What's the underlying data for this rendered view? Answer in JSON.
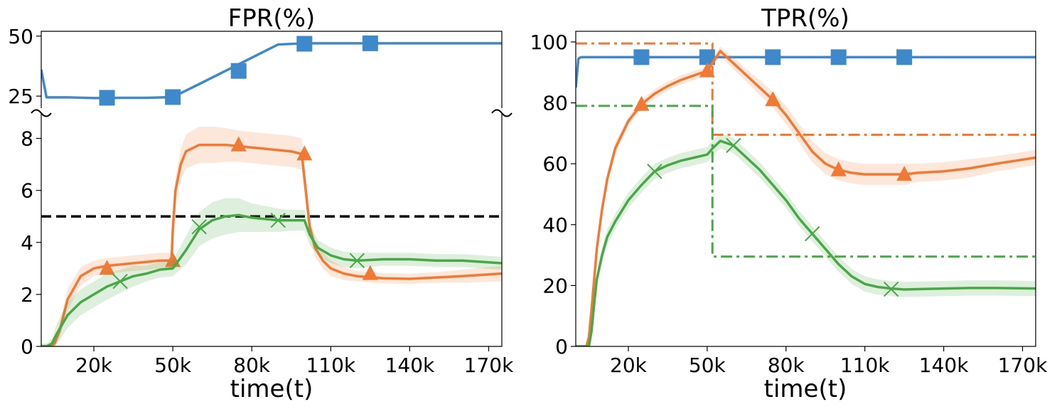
{
  "chart_data": [
    {
      "type": "line",
      "title": "FPR(%)",
      "xlabel": "time(t)",
      "ylabel": "",
      "x_ticks": [
        "20k",
        "50k",
        "80k",
        "110k",
        "140k",
        "170k"
      ],
      "xlim_k": [
        0,
        175
      ],
      "broken_y_axis": true,
      "upper_ylim": [
        20,
        52
      ],
      "upper_yticks": [
        25,
        50
      ],
      "lower_ylim": [
        0,
        9
      ],
      "lower_yticks": [
        0,
        2,
        4,
        6,
        8
      ],
      "threshold_line": {
        "y": 5,
        "style": "dashed",
        "color": "#000000"
      },
      "grid": false,
      "series": [
        {
          "color": "#3f88c9",
          "marker": "square",
          "x": [
            0,
            2,
            10,
            20,
            30,
            40,
            50,
            60,
            70,
            80,
            90,
            100,
            110,
            125,
            140,
            160,
            175
          ],
          "y": [
            36,
            24.5,
            24.5,
            24.2,
            24.3,
            24.3,
            24.6,
            30,
            35.5,
            41,
            46.5,
            47,
            47,
            47,
            47,
            47,
            47
          ],
          "markers_x": [
            25,
            50,
            75,
            100,
            125
          ],
          "markers_y": [
            24.3,
            24.6,
            35.5,
            46.8,
            47
          ]
        },
        {
          "color": "#f07933",
          "marker": "triangle",
          "x": [
            0,
            3,
            5,
            7,
            10,
            15,
            20,
            25,
            30,
            35,
            40,
            45,
            49.5,
            50,
            51,
            53,
            55,
            60,
            65,
            70,
            75,
            80,
            85,
            90,
            95,
            99,
            100.5,
            102,
            104,
            107,
            110,
            115,
            120,
            130,
            140,
            150,
            160,
            175
          ],
          "y": [
            0,
            0,
            0.1,
            0.6,
            1.8,
            2.7,
            3.0,
            3.1,
            3.15,
            3.2,
            3.25,
            3.3,
            3.3,
            4.5,
            6.0,
            7.0,
            7.5,
            7.75,
            7.75,
            7.75,
            7.7,
            7.65,
            7.6,
            7.55,
            7.5,
            7.4,
            6.0,
            4.6,
            3.8,
            3.3,
            3.0,
            2.8,
            2.7,
            2.62,
            2.6,
            2.65,
            2.7,
            2.8
          ],
          "band": [
            0.1,
            0.1,
            0.15,
            0.3,
            0.4,
            0.35,
            0.3,
            0.3,
            0.3,
            0.3,
            0.3,
            0.3,
            0.3,
            0.4,
            0.5,
            0.6,
            0.65,
            0.7,
            0.7,
            0.65,
            0.6,
            0.6,
            0.6,
            0.6,
            0.6,
            0.6,
            0.5,
            0.4,
            0.35,
            0.3,
            0.3,
            0.25,
            0.2,
            0.2,
            0.2,
            0.2,
            0.25,
            0.3
          ],
          "markers_x": [
            25,
            50,
            75,
            100,
            125
          ],
          "markers_y": [
            3.0,
            3.3,
            7.75,
            7.4,
            2.8
          ]
        },
        {
          "color": "#49a846",
          "marker": "x",
          "x": [
            0,
            2,
            4,
            6,
            10,
            15,
            20,
            25,
            30,
            35,
            40,
            45,
            50,
            55,
            60,
            65,
            70,
            75,
            80,
            85,
            90,
            95,
            100,
            102,
            105,
            110,
            115,
            120,
            130,
            140,
            150,
            160,
            175
          ],
          "y": [
            0,
            0,
            0.1,
            0.5,
            1.2,
            1.7,
            2.0,
            2.3,
            2.5,
            2.7,
            2.8,
            2.95,
            3.0,
            3.7,
            4.5,
            4.85,
            5.0,
            5.05,
            4.95,
            4.9,
            4.85,
            4.85,
            4.85,
            4.3,
            3.8,
            3.5,
            3.35,
            3.3,
            3.35,
            3.35,
            3.3,
            3.3,
            3.2
          ],
          "band": [
            0.1,
            0.1,
            0.2,
            0.4,
            0.5,
            0.5,
            0.5,
            0.5,
            0.45,
            0.4,
            0.3,
            0.3,
            0.3,
            0.55,
            0.65,
            0.7,
            0.7,
            0.65,
            0.55,
            0.5,
            0.45,
            0.4,
            0.4,
            0.4,
            0.3,
            0.3,
            0.3,
            0.3,
            0.25,
            0.25,
            0.25,
            0.25,
            0.25
          ],
          "markers_x": [
            30,
            60,
            90,
            120
          ],
          "markers_y": [
            2.5,
            4.6,
            4.85,
            3.3
          ]
        }
      ]
    },
    {
      "type": "line",
      "title": "TPR(%)",
      "xlabel": "time(t)",
      "ylabel": "",
      "x_ticks": [
        "20k",
        "50k",
        "80k",
        "110k",
        "140k",
        "170k"
      ],
      "xlim_k": [
        0,
        175
      ],
      "ylim": [
        0,
        100
      ],
      "yticks": [
        0,
        20,
        40,
        60,
        80,
        100
      ],
      "grid": false,
      "reference_lines": [
        {
          "color": "#f07933",
          "style": "dashdot",
          "points": [
            [
              0,
              99.5
            ],
            [
              52,
              99.5
            ],
            [
              52,
              69.5
            ],
            [
              175,
              69.5
            ]
          ]
        },
        {
          "color": "#49a846",
          "style": "dashdot",
          "points": [
            [
              0,
              79
            ],
            [
              52,
              79
            ],
            [
              52,
              29.5
            ],
            [
              175,
              29.5
            ]
          ]
        }
      ],
      "series": [
        {
          "color": "#3f88c9",
          "marker": "square",
          "x": [
            0,
            1,
            2,
            10,
            20,
            30,
            40,
            50,
            60,
            70,
            80,
            90,
            100,
            110,
            125,
            140,
            160,
            175
          ],
          "y": [
            85,
            94.5,
            95,
            95,
            95,
            95,
            95,
            95,
            95,
            95,
            95,
            95,
            95,
            95,
            95,
            95,
            95,
            95
          ],
          "markers_x": [
            25,
            50,
            75,
            100,
            125
          ],
          "markers_y": [
            95,
            95,
            95,
            95,
            95
          ]
        },
        {
          "color": "#f07933",
          "marker": "triangle",
          "x": [
            0,
            4,
            5,
            6,
            8,
            10,
            12,
            15,
            20,
            25,
            30,
            35,
            40,
            45,
            50,
            52,
            55,
            60,
            65,
            70,
            75,
            80,
            85,
            90,
            95,
            100,
            105,
            110,
            115,
            120,
            125,
            130,
            140,
            150,
            160,
            175
          ],
          "y": [
            0,
            0,
            3,
            12,
            32,
            45,
            55,
            65,
            74,
            79.5,
            83,
            85.5,
            87.5,
            89,
            90.5,
            93,
            97,
            93,
            89,
            85,
            81,
            76,
            70,
            64,
            60,
            58,
            57,
            56.5,
            56.5,
            56.5,
            56.5,
            57,
            57.5,
            58.5,
            60,
            62
          ],
          "band": [
            0,
            0.5,
            1,
            1.5,
            2,
            2,
            2,
            2,
            1.5,
            1.5,
            1.5,
            1.5,
            1.5,
            1.5,
            1.5,
            1.5,
            1.5,
            2,
            2,
            2.5,
            2.5,
            3,
            3,
            3.5,
            3.5,
            3.5,
            3.5,
            3.5,
            3.5,
            3.5,
            3.5,
            3,
            3,
            3,
            2.5,
            2.5
          ],
          "markers_x": [
            25,
            50,
            75,
            100,
            125
          ],
          "markers_y": [
            79.5,
            90.5,
            81,
            58,
            56.5
          ]
        },
        {
          "color": "#49a846",
          "marker": "x",
          "x": [
            0,
            5,
            6,
            7,
            8,
            10,
            12,
            15,
            20,
            25,
            30,
            35,
            40,
            45,
            50,
            52,
            55,
            60,
            65,
            70,
            75,
            80,
            85,
            90,
            95,
            100,
            105,
            110,
            115,
            120,
            125,
            130,
            140,
            150,
            160,
            175
          ],
          "y": [
            0,
            0,
            5,
            14,
            22,
            30,
            36,
            41,
            48,
            53,
            57.5,
            59.5,
            61,
            62,
            63,
            65,
            67.5,
            66,
            62,
            58,
            53,
            48,
            42,
            37,
            32,
            27,
            23,
            20.5,
            19.5,
            19,
            18.7,
            18.8,
            19,
            19.2,
            19.2,
            19
          ],
          "band": [
            0,
            0.5,
            1,
            1.5,
            2,
            2.5,
            2.5,
            2.5,
            2.5,
            2.5,
            2.5,
            2.5,
            2.5,
            2.5,
            2.5,
            2.5,
            2.5,
            2.5,
            2.5,
            2.5,
            2.5,
            2.5,
            2.5,
            2.5,
            2.5,
            2.5,
            2.5,
            2.5,
            2.5,
            2.5,
            2.5,
            2.5,
            2.5,
            2.5,
            2.5,
            2.5
          ],
          "markers_x": [
            30,
            60,
            90,
            120
          ],
          "markers_y": [
            57.5,
            66,
            37,
            18.8
          ]
        }
      ]
    }
  ]
}
